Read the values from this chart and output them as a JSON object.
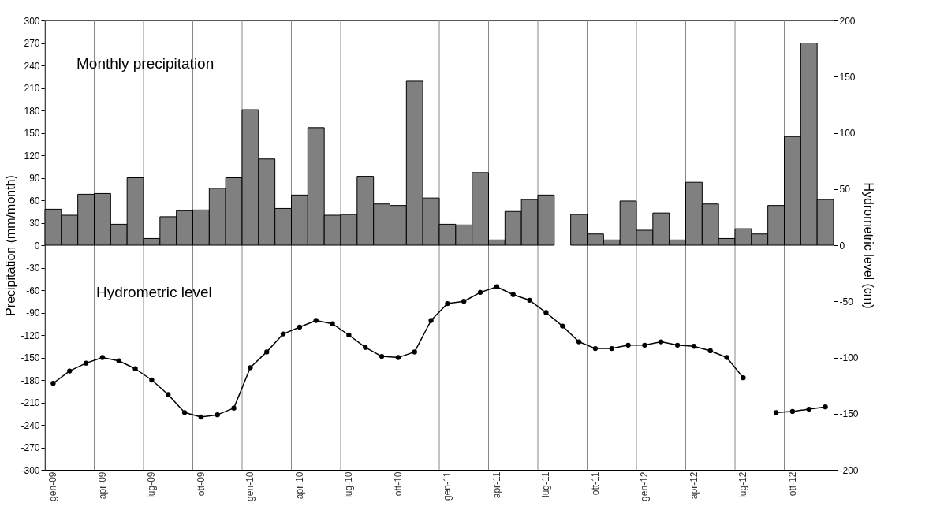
{
  "chart_data": {
    "type": "bar",
    "xlabel": null,
    "ylabel": "Precipitation (mm/month)",
    "y2label": "Hydrometric level (cm)",
    "categories": [
      "gen-09",
      null,
      null,
      "apr-09",
      null,
      null,
      "lug-09",
      null,
      null,
      "ott-09",
      null,
      null,
      "gen-10",
      null,
      null,
      "apr-10",
      null,
      null,
      "lug-10",
      null,
      null,
      "ott-10",
      null,
      null,
      "gen-11",
      null,
      null,
      "apr-11",
      null,
      null,
      "lug-11",
      null,
      null,
      "ott-11",
      null,
      null,
      "gen-12",
      null,
      null,
      "apr-12",
      null,
      null,
      "lug-12",
      null,
      null,
      "ott-12",
      null,
      null
    ],
    "series": [
      {
        "color": "#808080",
        "values": [
          48,
          40,
          68,
          69,
          28,
          90,
          9,
          38,
          46,
          47,
          76,
          90,
          181,
          115,
          49,
          67,
          157,
          40,
          41,
          92,
          55,
          53,
          219,
          63,
          28,
          27,
          97,
          7,
          45,
          61,
          67,
          null,
          41,
          15,
          7,
          59,
          20,
          43,
          7,
          84,
          55,
          9,
          22,
          15,
          53,
          145,
          270,
          61
        ]
      },
      {
        "type": "line",
        "axis": "y2",
        "color": "#000000",
        "marker": "circle",
        "line_style": "solid",
        "values": [
          -123,
          -112,
          -105,
          -100,
          -103,
          -110,
          -120,
          -133,
          -149,
          -153,
          -151,
          -145,
          -109,
          -95,
          -79,
          -73,
          -67,
          -70,
          -80,
          -91,
          -99,
          -100,
          -95,
          -67,
          -52,
          -50,
          -42,
          -37,
          -44,
          -49,
          -60,
          -72,
          -86,
          -92,
          -92,
          -89,
          -89,
          -86,
          -89,
          -90,
          -94,
          -100,
          -118,
          null,
          -149,
          -148,
          -146,
          -144
        ]
      }
    ],
    "ylim": [
      -300,
      300
    ],
    "yticks": [
      -300,
      -270,
      -240,
      -210,
      -180,
      -150,
      -120,
      -90,
      -60,
      -30,
      0,
      30,
      60,
      90,
      120,
      150,
      180,
      210,
      240,
      270,
      300
    ],
    "y2lim": [
      -200,
      200
    ],
    "y2ticks": [
      -200,
      -150,
      -100,
      -50,
      0,
      50,
      100,
      150,
      200
    ],
    "grid": "x",
    "annotations": [
      "Monthly precipitation",
      "Hydrometric level"
    ]
  }
}
